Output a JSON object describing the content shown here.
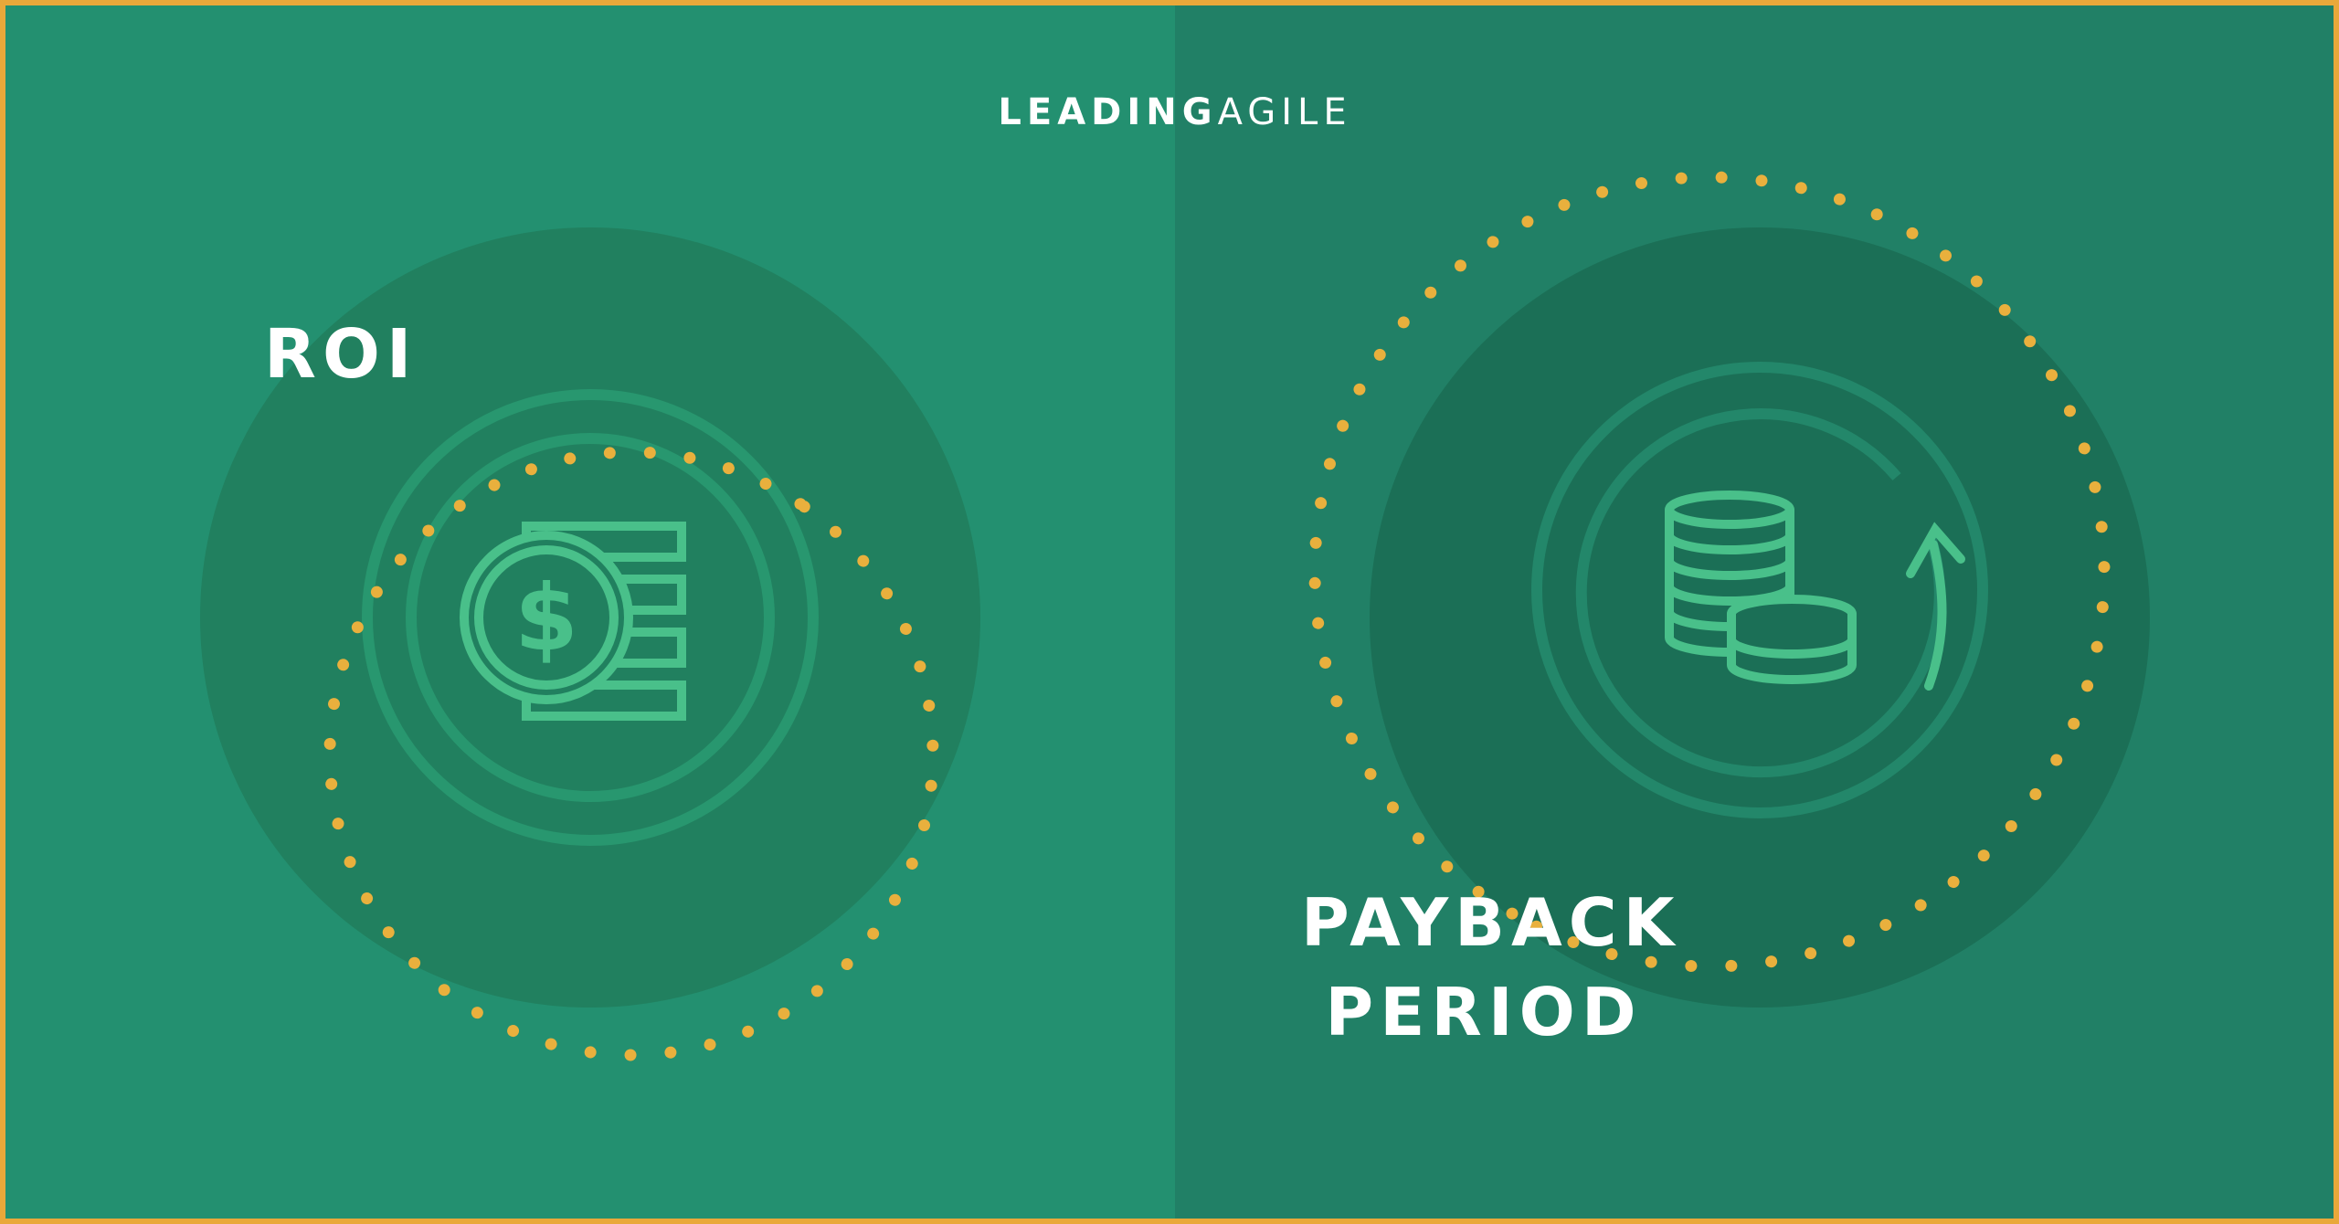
{
  "logo": {
    "strong": "LEADING",
    "light": "AGILE"
  },
  "roi": {
    "title": "ROI",
    "icon": "dollar-coin-cash-icon"
  },
  "payback": {
    "title_line1": "PAYBACK",
    "title_line2": "PERIOD",
    "icon": "coin-stack-cycle-icon"
  },
  "colors": {
    "border": "#e9a83a",
    "left_bg": "#239070",
    "right_bg": "#218066",
    "left_circle": "#21805f",
    "right_circle": "#1b6f56",
    "ring": "#28976f",
    "icon": "#49c08a",
    "dots": "#e9b03d",
    "text": "#ffffff"
  }
}
